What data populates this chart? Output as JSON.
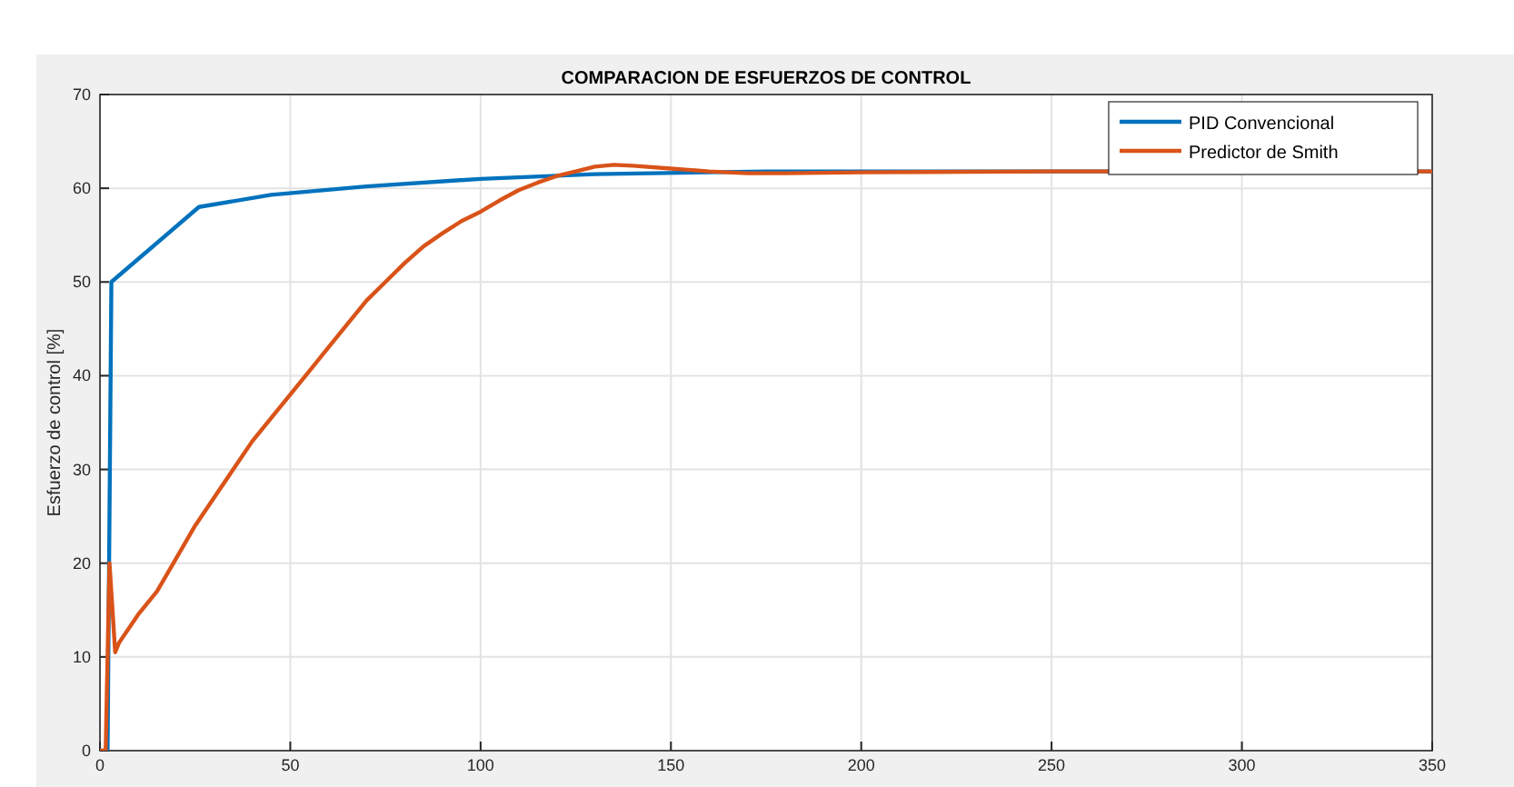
{
  "chart_data": {
    "type": "line",
    "title": "COMPARACION DE ESFUERZOS DE CONTROL",
    "ylabel": "Esfuerzo de control [%]",
    "xlim": [
      0,
      350
    ],
    "xticks": [
      0,
      50,
      100,
      150,
      200,
      250,
      300,
      350
    ],
    "ylim": [
      0,
      70
    ],
    "yticks": [
      0,
      10,
      20,
      30,
      40,
      50,
      60,
      70
    ],
    "grid": true,
    "legend": "top right",
    "line_style": "solid",
    "series": [
      {
        "name": "PID Convencional",
        "color": "#0072bd",
        "x": [
          0,
          2,
          3,
          26,
          45,
          70,
          100,
          130,
          175,
          350
        ],
        "values": [
          0,
          0,
          50,
          58,
          59.3,
          60.2,
          61,
          61.5,
          61.8,
          61.8
        ]
      },
      {
        "name": "Predictor de Smith",
        "color": "#d95319",
        "x": [
          0,
          1.5,
          2.5,
          4,
          5,
          10,
          15,
          20,
          25,
          30,
          35,
          40,
          45,
          50,
          55,
          60,
          65,
          70,
          75,
          80,
          85,
          90,
          95,
          100,
          105,
          110,
          115,
          120,
          125,
          130,
          135,
          140,
          150,
          160,
          170,
          180,
          200,
          250,
          350
        ],
        "values": [
          0,
          0,
          20,
          10.5,
          11.5,
          14.5,
          17,
          20.5,
          24,
          27,
          30,
          33,
          35.5,
          38,
          40.5,
          43,
          45.5,
          48,
          50,
          52,
          53.8,
          55.2,
          56.5,
          57.5,
          58.7,
          59.8,
          60.6,
          61.3,
          61.8,
          62.3,
          62.5,
          62.4,
          62.1,
          61.8,
          61.6,
          61.6,
          61.7,
          61.8,
          61.8
        ]
      }
    ]
  }
}
